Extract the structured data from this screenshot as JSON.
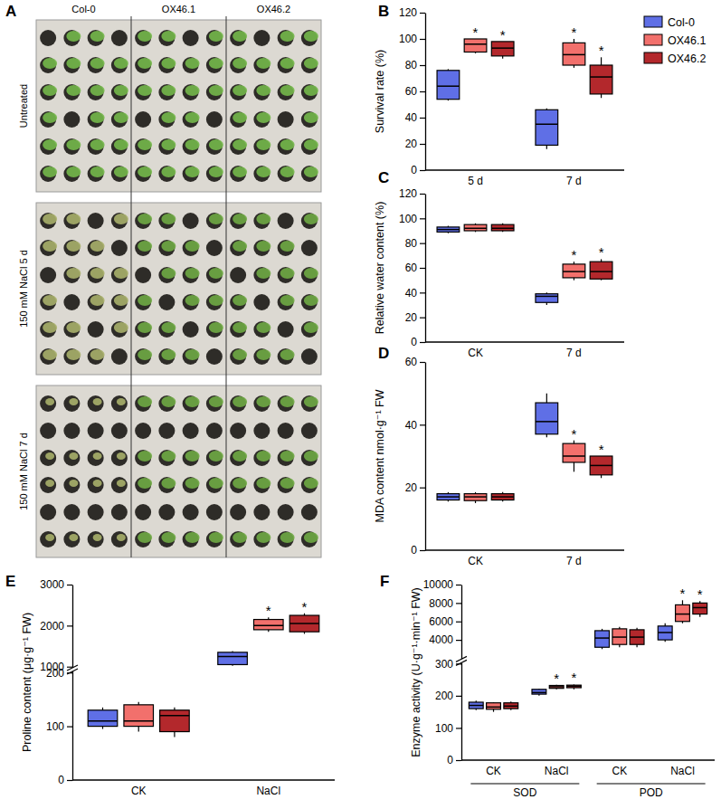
{
  "photo_panel": {
    "panel": "A",
    "columns": [
      "Col-0",
      "OX46.1",
      "OX46.2"
    ],
    "rows": [
      "Untreated",
      "150 mM NaCl 5 d",
      "150 mM NaCl 7 d"
    ]
  },
  "chart_data": [
    {
      "type": "box",
      "panel": "B",
      "y_label": "Survival rate (%)",
      "categories": [
        "5 d",
        "7 d"
      ],
      "ylim": [
        0,
        120
      ],
      "yticks": [
        0,
        20,
        40,
        60,
        80,
        100,
        120
      ],
      "legend": "right",
      "series": [
        {
          "name": "Col-0",
          "color": "#5f6fe6",
          "min": [
            53,
            16
          ],
          "q1": [
            54,
            19
          ],
          "median": [
            64,
            35
          ],
          "q3": [
            76,
            46
          ],
          "max": [
            77,
            47
          ],
          "significance": [
            null,
            null
          ]
        },
        {
          "name": "OX46.1",
          "color": "#f2706c",
          "min": [
            89,
            78
          ],
          "q1": [
            90,
            80
          ],
          "median": [
            96,
            88
          ],
          "q3": [
            100,
            97
          ],
          "max": [
            100,
            100
          ],
          "significance": [
            "*",
            "*"
          ]
        },
        {
          "name": "OX46.2",
          "color": "#b3282c",
          "min": [
            85,
            55
          ],
          "q1": [
            87,
            58
          ],
          "median": [
            93,
            71
          ],
          "q3": [
            98,
            80
          ],
          "max": [
            98,
            86
          ],
          "significance": [
            "*",
            "*"
          ]
        }
      ]
    },
    {
      "type": "box",
      "panel": "C",
      "y_label": "Relative water content (%)",
      "categories": [
        "CK",
        "7 d"
      ],
      "ylim": [
        0,
        120
      ],
      "yticks": [
        0,
        20,
        40,
        60,
        80,
        100,
        120
      ],
      "series": [
        {
          "color": "#5f6fe6",
          "min": [
            88,
            30
          ],
          "q1": [
            89,
            32
          ],
          "median": [
            91,
            37
          ],
          "q3": [
            93,
            39
          ],
          "max": [
            94,
            40
          ],
          "significance": [
            null,
            null
          ]
        },
        {
          "color": "#f2706c",
          "min": [
            89,
            50
          ],
          "q1": [
            90,
            52
          ],
          "median": [
            92,
            57
          ],
          "q3": [
            95,
            63
          ],
          "max": [
            96,
            65
          ],
          "significance": [
            null,
            "*"
          ]
        },
        {
          "color": "#b3282c",
          "min": [
            89,
            50
          ],
          "q1": [
            90,
            51
          ],
          "median": [
            92,
            57
          ],
          "q3": [
            95,
            65
          ],
          "max": [
            96,
            67
          ],
          "significance": [
            null,
            "*"
          ]
        }
      ]
    },
    {
      "type": "box",
      "panel": "D",
      "y_label": "MDA content nmol·g⁻¹ FW",
      "categories": [
        "CK",
        "7 d"
      ],
      "ylim": [
        0,
        60
      ],
      "yticks": [
        0,
        20,
        40,
        60
      ],
      "series": [
        {
          "color": "#5f6fe6",
          "min": [
            15.5,
            36
          ],
          "q1": [
            16,
            37
          ],
          "median": [
            17,
            41
          ],
          "q3": [
            18,
            47
          ],
          "max": [
            18.5,
            50
          ],
          "significance": [
            null,
            null
          ]
        },
        {
          "color": "#f2706c",
          "min": [
            15,
            25
          ],
          "q1": [
            15.8,
            28
          ],
          "median": [
            17,
            30
          ],
          "q3": [
            18,
            34
          ],
          "max": [
            18.5,
            35
          ],
          "significance": [
            null,
            "*"
          ]
        },
        {
          "color": "#b3282c",
          "min": [
            15.5,
            23
          ],
          "q1": [
            16,
            24
          ],
          "median": [
            17,
            27
          ],
          "q3": [
            18,
            30
          ],
          "max": [
            18.5,
            30
          ],
          "significance": [
            null,
            "*"
          ]
        }
      ]
    },
    {
      "type": "box",
      "panel": "E",
      "y_label": "Proline content (μg·g⁻¹ FW)",
      "categories": [
        "CK",
        "NaCl"
      ],
      "ylim": [
        0,
        3000
      ],
      "ybreak": [
        200,
        1000
      ],
      "yticks": [
        0,
        100,
        200,
        1000,
        2000,
        3000
      ],
      "series": [
        {
          "color": "#5f6fe6",
          "min": [
            95,
            1020
          ],
          "q1": [
            100,
            1050
          ],
          "median": [
            110,
            1250
          ],
          "q3": [
            130,
            1350
          ],
          "max": [
            135,
            1380
          ],
          "significance": [
            null,
            null
          ]
        },
        {
          "color": "#f2706c",
          "min": [
            90,
            1850
          ],
          "q1": [
            100,
            1900
          ],
          "median": [
            110,
            2000
          ],
          "q3": [
            140,
            2150
          ],
          "max": [
            145,
            2200
          ],
          "significance": [
            null,
            "*"
          ]
        },
        {
          "color": "#b3282c",
          "min": [
            80,
            1800
          ],
          "q1": [
            90,
            1850
          ],
          "median": [
            120,
            2050
          ],
          "q3": [
            130,
            2250
          ],
          "max": [
            135,
            2300
          ],
          "significance": [
            null,
            "*"
          ]
        }
      ]
    },
    {
      "type": "box",
      "panel": "F",
      "y_label": "Enzyme activity (U·g⁻¹·min⁻¹ FW)",
      "categories": [
        "CK",
        "NaCl",
        "CK",
        "NaCl"
      ],
      "groups": [
        "SOD",
        "SOD",
        "POD",
        "POD"
      ],
      "ylim": [
        0,
        10000
      ],
      "ybreak": [
        300,
        2000
      ],
      "yticks": [
        0,
        100,
        200,
        300,
        4000,
        6000,
        8000,
        10000
      ],
      "series": [
        {
          "color": "#5f6fe6",
          "min": [
            155,
            200,
            3000,
            3800
          ],
          "q1": [
            160,
            205,
            3200,
            4000
          ],
          "median": [
            170,
            210,
            4200,
            4800
          ],
          "q3": [
            180,
            220,
            5000,
            5500
          ],
          "max": [
            185,
            222,
            5200,
            5800
          ],
          "significance": [
            null,
            null,
            null,
            null
          ]
        },
        {
          "color": "#f2706c",
          "min": [
            150,
            220,
            3200,
            5800
          ],
          "q1": [
            158,
            223,
            3500,
            6000
          ],
          "median": [
            165,
            228,
            4300,
            6800
          ],
          "q3": [
            178,
            232,
            5200,
            7800
          ],
          "max": [
            180,
            234,
            5400,
            8300
          ],
          "significance": [
            null,
            "*",
            null,
            "*"
          ]
        },
        {
          "color": "#b3282c",
          "min": [
            155,
            220,
            3200,
            6500
          ],
          "q1": [
            160,
            225,
            3500,
            6800
          ],
          "median": [
            168,
            230,
            4300,
            7500
          ],
          "q3": [
            178,
            233,
            5100,
            8000
          ],
          "max": [
            182,
            235,
            5300,
            8200
          ],
          "significance": [
            null,
            "*",
            null,
            "*"
          ]
        }
      ]
    }
  ]
}
